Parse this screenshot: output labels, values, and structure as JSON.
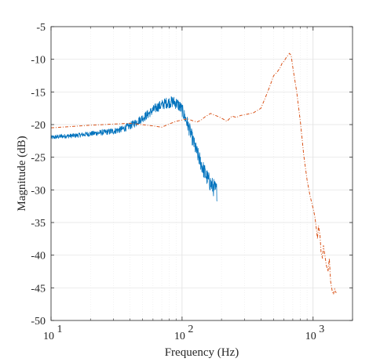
{
  "chart_data": {
    "type": "line",
    "title": "",
    "xlabel": "Frequency (Hz)",
    "ylabel": "Magnitude (dB)",
    "xscale": "log",
    "xlim": [
      10,
      2000
    ],
    "ylim": [
      -50,
      -5
    ],
    "grid": true,
    "legend": "none",
    "x_ticks": [
      10,
      100,
      1000
    ],
    "x_tick_labels": [
      {
        "base": "10",
        "exp": "1"
      },
      {
        "base": "10",
        "exp": "2"
      },
      {
        "base": "10",
        "exp": "3"
      }
    ],
    "y_ticks": [
      -50,
      -45,
      -40,
      -35,
      -30,
      -25,
      -20,
      -15,
      -10,
      -5
    ],
    "y_tick_labels": [
      "-50",
      "-45",
      "-40",
      "-35",
      "-30",
      "-25",
      "-20",
      "-15",
      "-10",
      "-5"
    ],
    "series": [
      {
        "style": "noisy-solid",
        "color": "#0072BD",
        "x": [
          10,
          12,
          15,
          20,
          25,
          30,
          35,
          40,
          45,
          50,
          55,
          60,
          65,
          70,
          75,
          80,
          85,
          90,
          95,
          100,
          105,
          110,
          115,
          120,
          125,
          130,
          135,
          140,
          145,
          150,
          155,
          160,
          165,
          170,
          175,
          180,
          185
        ],
        "y": [
          -22,
          -21.8,
          -21.7,
          -21.4,
          -21.2,
          -21,
          -20.7,
          -20.2,
          -19.6,
          -19,
          -18.4,
          -17.8,
          -17.3,
          -17,
          -16.7,
          -16.6,
          -16.5,
          -16.7,
          -17.1,
          -17.8,
          -18.8,
          -19.9,
          -21,
          -22.2,
          -23.3,
          -24.3,
          -25.2,
          -26,
          -26.8,
          -27.5,
          -28.1,
          -28.6,
          -29,
          -29.4,
          -29.7,
          -30,
          -30.3
        ]
      },
      {
        "style": "dash-dot",
        "color": "#D95319",
        "x": [
          10,
          20,
          40,
          60,
          70,
          80,
          90,
          100,
          110,
          120,
          130,
          140,
          150,
          165,
          180,
          200,
          220,
          240,
          260,
          280,
          300,
          350,
          400,
          450,
          480,
          500,
          530,
          560,
          580,
          600,
          630,
          660,
          680,
          700,
          750,
          800,
          850,
          900,
          950,
          1000,
          1030,
          1060,
          1080,
          1100,
          1130,
          1150,
          1180,
          1200,
          1230,
          1260,
          1300,
          1330,
          1360,
          1400,
          1430,
          1460,
          1500
        ],
        "y": [
          -20.5,
          -20.1,
          -19.8,
          -20.2,
          -20.4,
          -19.9,
          -19.5,
          -19.3,
          -19.1,
          -19.4,
          -19.6,
          -19.3,
          -18.8,
          -18.3,
          -18.6,
          -19,
          -19.5,
          -18.7,
          -18.9,
          -18.6,
          -18.5,
          -18.2,
          -17.5,
          -15,
          -13.5,
          -12.5,
          -12,
          -11.3,
          -10.6,
          -10.3,
          -9.6,
          -9.1,
          -9.4,
          -11.2,
          -15,
          -19.6,
          -24.8,
          -28.5,
          -31,
          -32.8,
          -34,
          -36,
          -37.5,
          -35.5,
          -37,
          -39.5,
          -40.5,
          -38.5,
          -40,
          -41.5,
          -42.5,
          -40.5,
          -44,
          -45.5,
          -46,
          -45.2,
          -45.8
        ]
      }
    ]
  }
}
